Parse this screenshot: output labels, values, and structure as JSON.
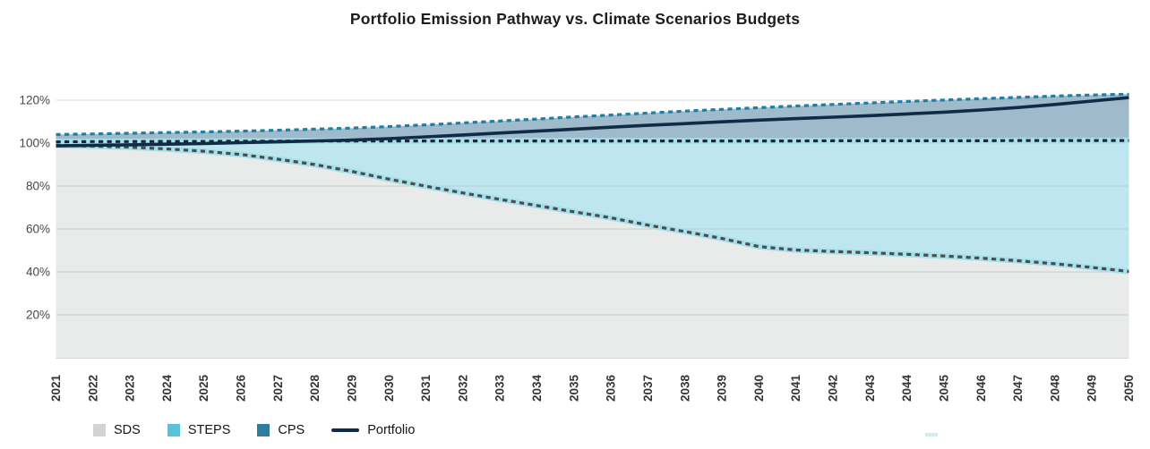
{
  "title": "Portfolio Emission Pathway vs. Climate Scenarios Budgets",
  "chart_data": {
    "type": "area",
    "title": "Portfolio Emission Pathway vs. Climate Scenarios Budgets",
    "xlabel": "",
    "ylabel": "",
    "x": [
      2021,
      2022,
      2023,
      2024,
      2025,
      2026,
      2027,
      2028,
      2029,
      2030,
      2031,
      2032,
      2033,
      2034,
      2035,
      2036,
      2037,
      2038,
      2039,
      2040,
      2041,
      2042,
      2043,
      2044,
      2045,
      2046,
      2047,
      2048,
      2049,
      2050
    ],
    "y_unit": "%",
    "y_ticks": [
      {
        "value": 120,
        "label": "120%"
      },
      {
        "value": 100,
        "label": "100%"
      },
      {
        "value": 80,
        "label": "80%"
      },
      {
        "value": 60,
        "label": "60%"
      },
      {
        "value": 40,
        "label": "40%"
      },
      {
        "value": 20,
        "label": "20%"
      }
    ],
    "ylim": [
      0,
      133
    ],
    "grid": true,
    "legend_position": "bottom-left",
    "series": [
      {
        "name": "SDS",
        "kind": "area",
        "line_style": "dashed",
        "fill": "#E9EAEA",
        "line_color": "#4C4C4C",
        "halo_color": "#A6E0EB",
        "values": [
          99,
          98.6,
          98.1,
          97.3,
          96.2,
          94.7,
          92.5,
          90,
          86.8,
          83.2,
          79.9,
          76.8,
          73.8,
          70.9,
          68,
          65.2,
          61.8,
          58.8,
          55.6,
          51.8,
          50.2,
          49.5,
          48.9,
          48.2,
          47.4,
          46.4,
          45.2,
          43.8,
          42.1,
          40.2
        ]
      },
      {
        "name": "STEPS",
        "kind": "area",
        "line_style": "dashed",
        "fill": "#BEE6EF",
        "line_color": "#18293B",
        "halo_color": "#A6E0EB",
        "values": [
          100.6,
          100.7,
          100.7,
          100.8,
          100.8,
          100.9,
          100.9,
          101,
          101,
          101,
          101,
          101,
          101,
          101,
          101,
          101,
          101,
          101,
          101,
          101,
          101,
          101.1,
          101.1,
          101.1,
          101.1,
          101.1,
          101.2,
          101.2,
          101.2,
          101.2
        ]
      },
      {
        "name": "CPS",
        "kind": "area",
        "line_style": "dashed",
        "fill": "#9FBBCB",
        "line_color": "#1E7FA4",
        "halo_color": null,
        "values": [
          104,
          104.3,
          104.6,
          104.9,
          105.2,
          105.6,
          106,
          106.5,
          107,
          107.7,
          108.5,
          109.4,
          110.3,
          111.2,
          112.2,
          113.1,
          114,
          114.9,
          115.7,
          116.5,
          117.3,
          118,
          118.7,
          119.4,
          120.1,
          120.7,
          121.3,
          121.9,
          122.4,
          122.8
        ]
      },
      {
        "name": "Portfolio",
        "kind": "line",
        "line_style": "solid",
        "fill": null,
        "line_color": "#0F2B45",
        "halo_color": null,
        "values": [
          98.7,
          99,
          99.2,
          99.5,
          99.8,
          100.2,
          100.6,
          101,
          101.4,
          102.1,
          102.9,
          103.8,
          104.7,
          105.6,
          106.5,
          107.4,
          108.3,
          109.1,
          109.9,
          110.7,
          111.4,
          112.1,
          112.8,
          113.6,
          114.4,
          115.4,
          116.6,
          118,
          119.6,
          121.2
        ]
      }
    ]
  },
  "legend": {
    "items": [
      {
        "label": "SDS",
        "swatch_color": "#D2D3D3",
        "swatch_type": "square"
      },
      {
        "label": "STEPS",
        "swatch_color": "#57C3D8",
        "swatch_type": "square"
      },
      {
        "label": "CPS",
        "swatch_color": "#2E7D9E",
        "swatch_type": "square"
      },
      {
        "label": "Portfolio",
        "swatch_color": "#0F2B45",
        "swatch_type": "line"
      }
    ]
  },
  "style_colors": {
    "grid": "#9AA6AA",
    "axis_text": "#484848",
    "x_tick_text": "#353535",
    "title_text": "#1D1D1D",
    "plot_bottom_edge": "#C8CCCE"
  }
}
